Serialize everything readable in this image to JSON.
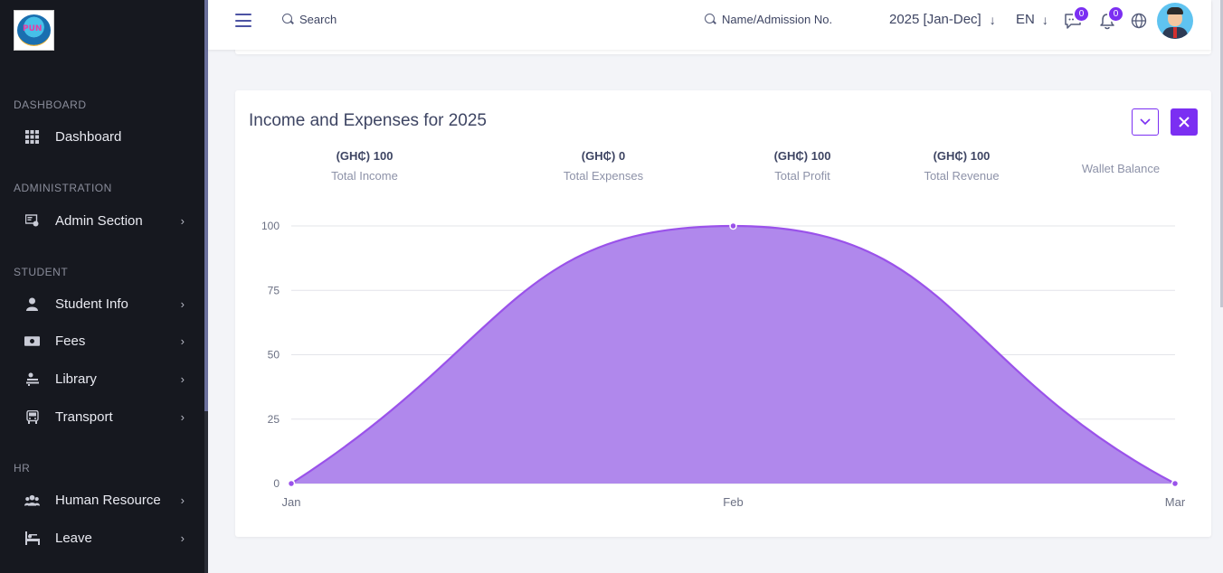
{
  "sidebar": {
    "sections": [
      {
        "title": "DASHBOARD"
      },
      {
        "title": "ADMINISTRATION"
      },
      {
        "title": "STUDENT"
      },
      {
        "title": "HR"
      }
    ],
    "items": [
      {
        "label": "Dashboard",
        "icon": "grid-icon"
      },
      {
        "label": "Admin Section",
        "icon": "admin-icon"
      },
      {
        "label": "Student Info",
        "icon": "user-icon"
      },
      {
        "label": "Fees",
        "icon": "money-icon"
      },
      {
        "label": "Library",
        "icon": "library-icon"
      },
      {
        "label": "Transport",
        "icon": "bus-icon"
      },
      {
        "label": "Human Resource",
        "icon": "users-icon"
      },
      {
        "label": "Leave",
        "icon": "leave-icon"
      }
    ],
    "chevron": "›"
  },
  "header": {
    "search_label": "Search",
    "admission_search_label": "Name/Admission No.",
    "session_label": "2025 [Jan-Dec]",
    "language_label": "EN",
    "messages_badge": "0",
    "notifications_badge": "0"
  },
  "card": {
    "title": "Income and Expenses for 2025",
    "collapse_icon": "chevron-down-icon",
    "close_icon": "close-icon",
    "stats": [
      {
        "value": "(GH₵) 100",
        "label": "Total Income"
      },
      {
        "value": "(GH₵) 0",
        "label": "Total Expenses"
      },
      {
        "value": "(GH₵) 100",
        "label": "Total Profit"
      },
      {
        "value": "(GH₵) 100",
        "label": "Total Revenue"
      },
      {
        "value": "",
        "label": "Wallet Balance"
      }
    ]
  },
  "colors": {
    "accent": "#7b2ff2",
    "area_fill": "#b088ec",
    "area_stroke": "#9a52ea",
    "sidebar_bg": "#16181f"
  },
  "chart_data": {
    "type": "area",
    "categories": [
      "Jan",
      "Feb",
      "Mar"
    ],
    "series": [
      {
        "values": [
          0,
          100,
          0
        ]
      }
    ],
    "yticks": [
      "0",
      "25",
      "50",
      "75",
      "100"
    ],
    "ylim": [
      0,
      100
    ],
    "grid": true
  }
}
